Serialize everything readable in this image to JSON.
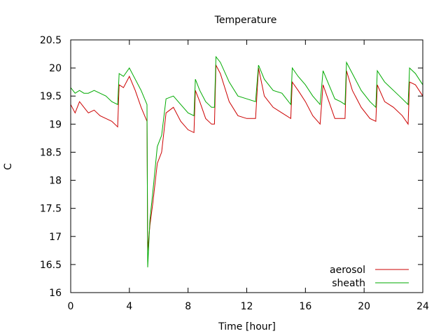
{
  "chart_data": {
    "type": "line",
    "title": "Temperature",
    "xlabel": "Time [hour]",
    "ylabel": "C",
    "xlim": [
      0,
      24
    ],
    "ylim": [
      16,
      20.5
    ],
    "xticks": [
      0,
      4,
      8,
      12,
      16,
      20,
      24
    ],
    "yticks": [
      16,
      16.5,
      17,
      17.5,
      18,
      18.5,
      19,
      19.5,
      20,
      20.5
    ],
    "grid": false,
    "legend_position": "bottom-right",
    "series": [
      {
        "name": "aerosol",
        "color": "#cc0000",
        "x": [
          0,
          0.3,
          0.6,
          0.9,
          1.2,
          1.6,
          2.0,
          2.4,
          2.8,
          3.2,
          3.3,
          3.6,
          4.0,
          4.4,
          4.8,
          5.2,
          5.25,
          5.4,
          5.6,
          5.9,
          6.2,
          6.5,
          7.0,
          7.5,
          8.0,
          8.4,
          8.5,
          8.8,
          9.2,
          9.6,
          9.8,
          9.9,
          10.2,
          10.8,
          11.4,
          12.0,
          12.6,
          12.8,
          13.2,
          13.8,
          14.4,
          15.0,
          15.1,
          15.5,
          16.0,
          16.5,
          17.0,
          17.2,
          17.6,
          18.0,
          18.4,
          18.7,
          18.8,
          19.2,
          19.8,
          20.4,
          20.8,
          20.9,
          21.4,
          22.0,
          22.6,
          23.0,
          23.1,
          23.5,
          24.0
        ],
        "values": [
          19.35,
          19.2,
          19.4,
          19.3,
          19.2,
          19.25,
          19.15,
          19.1,
          19.05,
          18.95,
          19.7,
          19.65,
          19.85,
          19.6,
          19.3,
          19.05,
          16.75,
          17.2,
          17.6,
          18.3,
          18.5,
          19.2,
          19.3,
          19.05,
          18.9,
          18.85,
          19.6,
          19.4,
          19.1,
          19.0,
          19.0,
          20.05,
          19.9,
          19.4,
          19.15,
          19.1,
          19.1,
          20.0,
          19.5,
          19.3,
          19.2,
          19.1,
          19.75,
          19.6,
          19.4,
          19.15,
          19.0,
          19.7,
          19.4,
          19.1,
          19.1,
          19.1,
          19.95,
          19.6,
          19.3,
          19.1,
          19.05,
          19.7,
          19.4,
          19.3,
          19.15,
          19.0,
          19.75,
          19.7,
          19.5
        ]
      },
      {
        "name": "sheath",
        "color": "#00aa00",
        "x": [
          0,
          0.3,
          0.6,
          0.9,
          1.2,
          1.6,
          2.0,
          2.4,
          2.8,
          3.2,
          3.3,
          3.6,
          4.0,
          4.4,
          4.8,
          5.2,
          5.25,
          5.4,
          5.6,
          5.9,
          6.2,
          6.5,
          7.0,
          7.5,
          8.0,
          8.4,
          8.5,
          8.8,
          9.2,
          9.6,
          9.8,
          9.9,
          10.2,
          10.8,
          11.4,
          12.0,
          12.6,
          12.8,
          13.2,
          13.8,
          14.4,
          15.0,
          15.1,
          15.5,
          16.0,
          16.5,
          17.0,
          17.2,
          17.6,
          18.0,
          18.4,
          18.7,
          18.8,
          19.2,
          19.8,
          20.4,
          20.8,
          20.9,
          21.4,
          22.0,
          22.6,
          23.0,
          23.1,
          23.5,
          24.0
        ],
        "values": [
          19.65,
          19.55,
          19.6,
          19.55,
          19.55,
          19.6,
          19.55,
          19.5,
          19.4,
          19.35,
          19.9,
          19.85,
          20.0,
          19.8,
          19.6,
          19.35,
          16.45,
          17.3,
          17.8,
          18.6,
          18.8,
          19.45,
          19.5,
          19.35,
          19.2,
          19.15,
          19.8,
          19.6,
          19.4,
          19.3,
          19.3,
          20.2,
          20.1,
          19.75,
          19.5,
          19.45,
          19.4,
          20.05,
          19.8,
          19.6,
          19.55,
          19.35,
          20.0,
          19.85,
          19.7,
          19.5,
          19.35,
          19.95,
          19.7,
          19.45,
          19.4,
          19.35,
          20.1,
          19.9,
          19.6,
          19.4,
          19.3,
          19.95,
          19.75,
          19.6,
          19.45,
          19.35,
          20.0,
          19.9,
          19.7
        ]
      }
    ]
  }
}
